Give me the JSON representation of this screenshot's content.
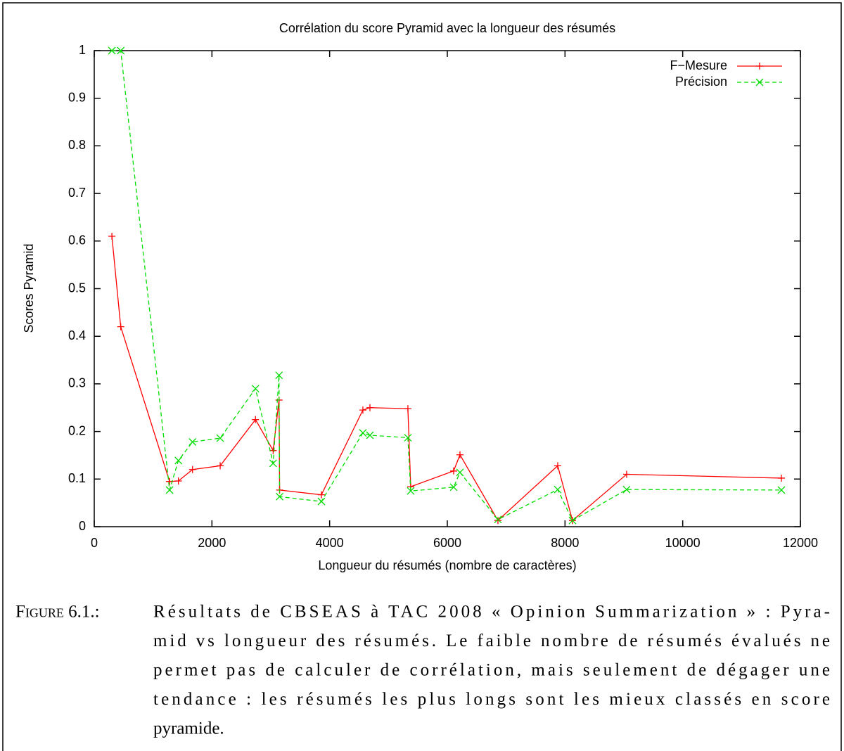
{
  "chart_data": {
    "type": "line",
    "title": "Corrélation du score Pyramid avec la longueur des résumés",
    "xlabel": "Longueur du résumés (nombre de caractères)",
    "ylabel": "Scores Pyramid",
    "x": [
      300,
      450,
      1280,
      1430,
      1670,
      2140,
      2740,
      3040,
      3140,
      3150,
      3860,
      4565,
      4685,
      5330,
      5378,
      6107,
      6215,
      6860,
      7876,
      8127,
      9047,
      11677
    ],
    "series": [
      {
        "name": "F−Mesure",
        "color": "#ff0000",
        "dash": false,
        "marker": "plus",
        "values": [
          0.61,
          0.42,
          0.095,
          0.096,
          0.12,
          0.128,
          0.225,
          0.16,
          0.266,
          0.077,
          0.067,
          0.245,
          0.25,
          0.248,
          0.084,
          0.117,
          0.151,
          0.013,
          0.128,
          0.013,
          0.11,
          0.102
        ]
      },
      {
        "name": "Précision",
        "color": "#00dd00",
        "dash": true,
        "marker": "cross",
        "values": [
          1.0,
          1.0,
          0.077,
          0.139,
          0.178,
          0.186,
          0.29,
          0.133,
          0.318,
          0.063,
          0.053,
          0.197,
          0.192,
          0.187,
          0.075,
          0.083,
          0.114,
          0.015,
          0.078,
          0.013,
          0.078,
          0.077
        ]
      }
    ],
    "xlim": [
      0,
      12000
    ],
    "xticks": [
      0,
      2000,
      4000,
      6000,
      8000,
      10000,
      12000
    ],
    "ylim": [
      0,
      1
    ],
    "yticks": [
      0,
      0.1,
      0.2,
      0.3,
      0.4,
      0.5,
      0.6,
      0.7,
      0.8,
      0.9,
      1
    ],
    "grid": false,
    "legend": "top-right"
  },
  "caption": {
    "label": "Figure 6.1.:",
    "lines": [
      "Résultats de CBSEAS à TAC 2008 « Opinion Summarization » : Pyra-",
      "mid vs longueur des résumés. Le faible nombre de résumés évalués ne",
      "permet pas de calculer de corrélation, mais seulement de dégager une",
      "tendance : les résumés les plus longs sont les mieux classés en score",
      "pyramide."
    ]
  }
}
